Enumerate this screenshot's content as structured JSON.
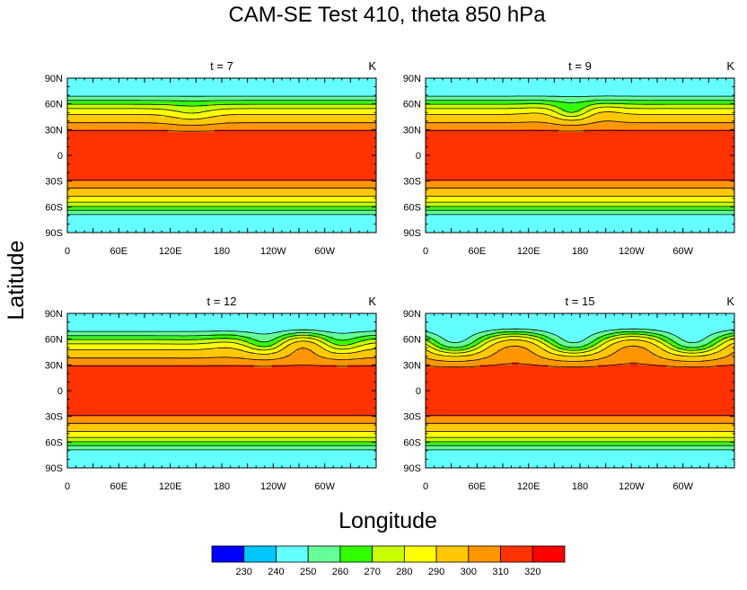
{
  "chart_data": {
    "type": "contour",
    "title": "CAM-SE Test 410, theta 850 hPa",
    "xlabel": "Longitude",
    "ylabel": "Latitude",
    "units": "K",
    "x_ticks": [
      "0",
      "60E",
      "120E",
      "180",
      "120W",
      "60W"
    ],
    "y_ticks": [
      "90N",
      "60N",
      "30N",
      "0",
      "30S",
      "60S",
      "90S"
    ],
    "xlim": [
      0,
      360
    ],
    "ylim": [
      -90,
      90
    ],
    "colorbar": {
      "levels": [
        230,
        240,
        250,
        260,
        270,
        280,
        290,
        300,
        310,
        320
      ],
      "colors": [
        "#0000ff",
        "#00c8ff",
        "#64ffff",
        "#64ff96",
        "#32ff00",
        "#c8ff00",
        "#ffff00",
        "#ffc800",
        "#ff9600",
        "#ff3200",
        "#ff0000"
      ]
    },
    "panels": [
      {
        "title": "t = 7",
        "units": "K"
      },
      {
        "title": "t = 9",
        "units": "K"
      },
      {
        "title": "t = 12",
        "units": "K"
      },
      {
        "title": "t = 15",
        "units": "K"
      }
    ]
  }
}
